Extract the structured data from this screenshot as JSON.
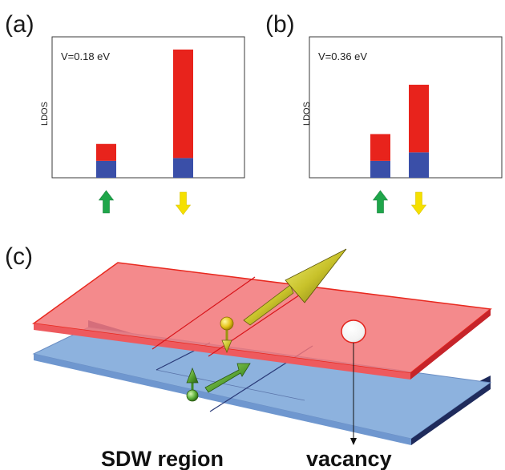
{
  "panels": {
    "a": {
      "tag": "(a)",
      "energy_label": "V=0.18 eV",
      "ylabel": "LDOS",
      "up_spin": {
        "blue": 0.12,
        "red": 0.12
      },
      "down_spin": {
        "blue": 0.14,
        "red": 0.77
      }
    },
    "b": {
      "tag": "(b)",
      "energy_label": "V=0.36 eV",
      "ylabel": "LDOS",
      "up_spin": {
        "blue": 0.12,
        "red": 0.19
      },
      "down_spin": {
        "blue": 0.18,
        "red": 0.48
      }
    },
    "c": {
      "tag": "(c)",
      "sdw_label": "SDW region",
      "vacancy_label": "vacancy"
    }
  },
  "colors": {
    "bar_red": "#e8231c",
    "bar_blue": "#3a4fa8",
    "arrow_up": "#1fa64a",
    "arrow_down": "#f5e000",
    "sheet_top": "#f06a6f",
    "sheet_top_edge": "#e8281e",
    "sheet_bottom": "#8ab0dd",
    "sheet_bottom_edge": "#2a3a78",
    "spin_vector": "#b7b400"
  }
}
